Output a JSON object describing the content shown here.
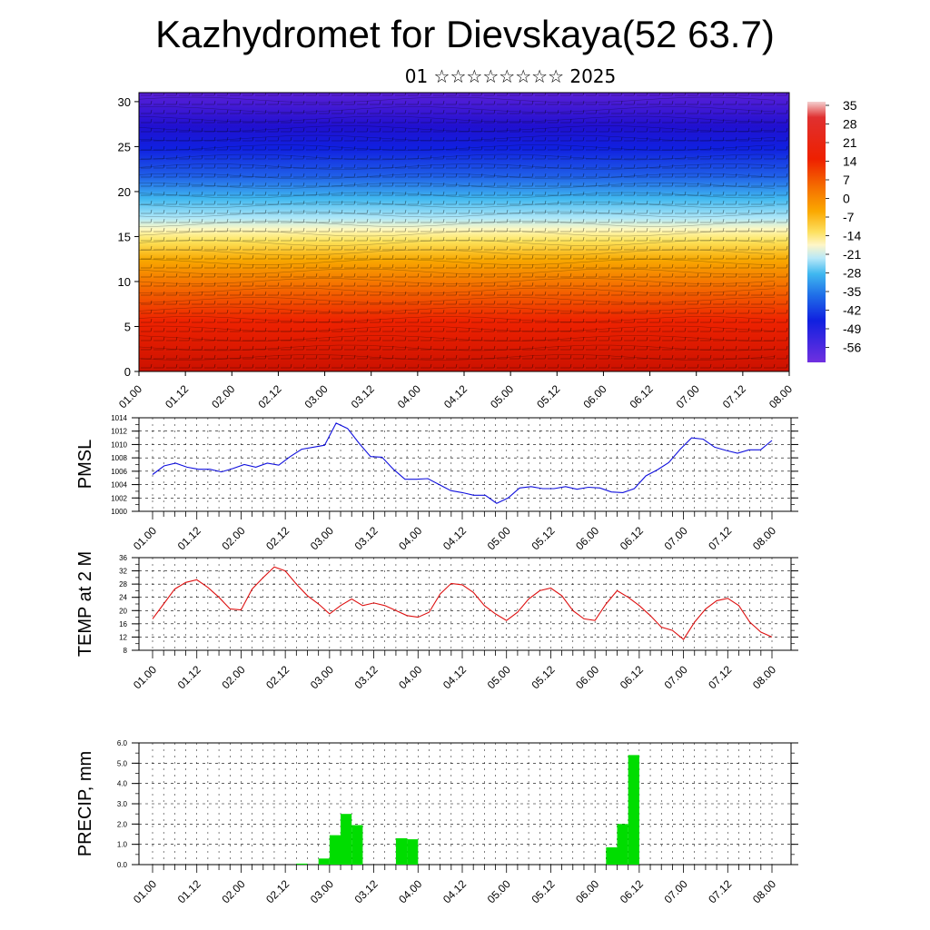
{
  "header": {
    "title": "Kazhydromet for Dievskaya(52 63.7)",
    "subtitle": "01 ☆☆☆☆☆☆☆☆ 2025"
  },
  "x_tick_labels": [
    "01.00",
    "01.12",
    "02.00",
    "02.12",
    "03.00",
    "03.12",
    "04.00",
    "04.12",
    "05.00",
    "05.12",
    "06.00",
    "06.12",
    "07.00",
    "07.12",
    "08.00"
  ],
  "colors": {
    "pmsl_line": "#1010dd",
    "temp_line": "#dd1010",
    "precip_bar": "#00dd00"
  },
  "chart_data": [
    {
      "id": "cross-section",
      "type": "heatmap",
      "x_ticks": [
        "01.00",
        "01.12",
        "02.00",
        "02.12",
        "03.00",
        "03.12",
        "04.00",
        "04.12",
        "05.00",
        "05.12",
        "06.00",
        "06.12",
        "07.00",
        "07.12",
        "08.00"
      ],
      "y_ticks": [
        "0",
        "5",
        "10",
        "15",
        "20",
        "25",
        "30"
      ],
      "ylim": [
        0,
        31
      ],
      "colorbar_labels": [
        "35",
        "28",
        "21",
        "14",
        "7",
        "0",
        "-7",
        "-14",
        "-21",
        "-28",
        "-35",
        "-42",
        "-49",
        "-56"
      ],
      "colorbar_range": [
        -60,
        38
      ],
      "description_fields": "temperature shaded with wind barbs and streamlines"
    },
    {
      "id": "pmsl",
      "type": "line",
      "ylabel": "PMSL",
      "ylim": [
        1000,
        1014
      ],
      "y_ticks": [
        "1014",
        "1012",
        "1010",
        "1008",
        "1006",
        "1004",
        "1002",
        "1000"
      ],
      "x_ticks": [
        "01.00",
        "01.12",
        "02.00",
        "02.12",
        "03.00",
        "03.12",
        "04.00",
        "04.12",
        "05.00",
        "05.12",
        "06.00",
        "06.12",
        "07.00",
        "07.12",
        "08.00"
      ],
      "values": [
        1005.5,
        1006.8,
        1007.2,
        1006.6,
        1006.3,
        1006.3,
        1005.9,
        1006.4,
        1007.0,
        1006.6,
        1007.2,
        1006.9,
        1008.2,
        1009.3,
        1009.6,
        1009.9,
        1013.2,
        1012.4,
        1010.2,
        1008.2,
        1008.1,
        1006.3,
        1004.8,
        1004.8,
        1004.9,
        1004.0,
        1003.1,
        1002.8,
        1002.4,
        1002.4,
        1001.2,
        1002.0,
        1003.5,
        1003.7,
        1003.4,
        1003.4,
        1003.7,
        1003.3,
        1003.6,
        1003.5,
        1002.9,
        1002.8,
        1003.4,
        1005.3,
        1006.2,
        1007.3,
        1009.3,
        1011.0,
        1010.8,
        1009.6,
        1009.1,
        1008.7,
        1009.2,
        1009.2,
        1010.6
      ]
    },
    {
      "id": "temp",
      "type": "line",
      "ylabel": "TEMP at 2 M",
      "ylim": [
        8,
        36
      ],
      "y_ticks": [
        "36",
        "32",
        "28",
        "24",
        "20",
        "16",
        "12",
        "8"
      ],
      "x_ticks": [
        "01.00",
        "01.12",
        "02.00",
        "02.12",
        "03.00",
        "03.12",
        "04.00",
        "04.12",
        "05.00",
        "05.12",
        "06.00",
        "06.12",
        "07.00",
        "07.12",
        "08.00"
      ],
      "values": [
        17.5,
        22.0,
        26.5,
        28.5,
        29.3,
        27.0,
        24.0,
        20.5,
        20.2,
        26.5,
        30.0,
        33.2,
        32.0,
        28.0,
        24.5,
        22.0,
        19.0,
        21.5,
        23.5,
        21.5,
        22.3,
        21.5,
        20.0,
        18.5,
        18.0,
        19.5,
        25.0,
        28.2,
        27.8,
        25.5,
        21.5,
        19.0,
        17.0,
        19.5,
        23.5,
        26.0,
        26.8,
        24.5,
        20.0,
        17.5,
        17.0,
        22.0,
        26.0,
        24.0,
        21.5,
        18.5,
        15.0,
        14.0,
        11.3,
        16.5,
        20.5,
        23.0,
        23.7,
        21.5,
        16.5,
        13.5,
        12.0
      ]
    },
    {
      "id": "precip",
      "type": "bar",
      "ylabel": "PRECIP, mm",
      "ylim": [
        0,
        6
      ],
      "y_ticks": [
        "6.0",
        "5.0",
        "4.0",
        "3.0",
        "2.0",
        "1.0",
        "0.0"
      ],
      "x_ticks": [
        "01.00",
        "01.12",
        "02.00",
        "02.12",
        "03.00",
        "03.12",
        "04.00",
        "04.12",
        "05.00",
        "05.12",
        "06.00",
        "06.12",
        "07.00",
        "07.12",
        "08.00"
      ],
      "bars": [
        {
          "time": 13.0,
          "value": 0.05
        },
        {
          "time": 15.0,
          "value": 0.3
        },
        {
          "time": 16.0,
          "value": 1.45
        },
        {
          "time": 17.0,
          "value": 2.5
        },
        {
          "time": 18.0,
          "value": 1.95
        },
        {
          "time": 22.0,
          "value": 1.3
        },
        {
          "time": 23.0,
          "value": 1.25
        },
        {
          "time": 41.0,
          "value": 0.85
        },
        {
          "time": 42.0,
          "value": 2.0
        },
        {
          "time": 43.0,
          "value": 5.4
        }
      ],
      "bar_width_steps": 1
    }
  ]
}
